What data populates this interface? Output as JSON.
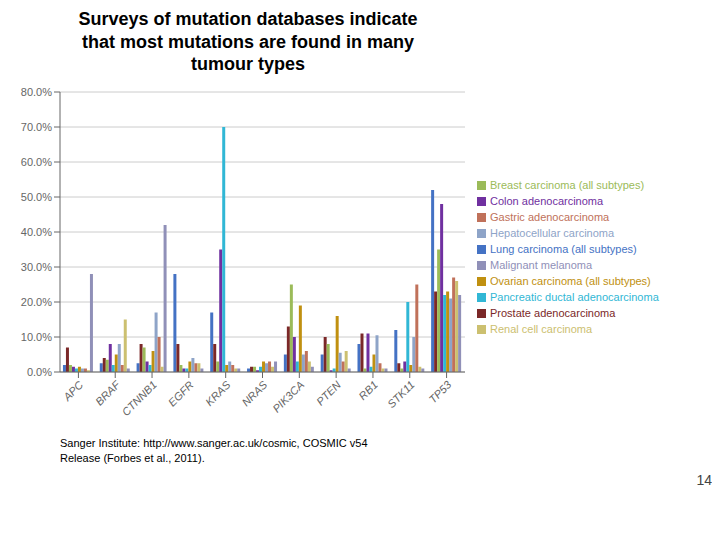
{
  "chart_data": {
    "type": "bar",
    "title": "Surveys of mutation databases indicate\nthat most mutations are found in many\ntumour types",
    "categories": [
      "APC",
      "BRAF",
      "CTNNB1",
      "EGFR",
      "KRAS",
      "NRAS",
      "PIK3CA",
      "PTEN",
      "RB1",
      "STK11",
      "TP53"
    ],
    "series": [
      {
        "name": "Lung carcinoma (all subtypes)",
        "color": "#4472C4",
        "values": [
          2.0,
          2.5,
          2.5,
          28.0,
          17.0,
          1.0,
          5.0,
          5.0,
          8.0,
          12.0,
          52.0
        ]
      },
      {
        "name": "Prostate adenocarcinoma",
        "color": "#7B2828",
        "values": [
          7.0,
          4.0,
          8.0,
          8.0,
          8.0,
          1.5,
          13.0,
          10.0,
          11.0,
          2.5,
          23.0
        ]
      },
      {
        "name": "Breast carcinoma (all subtypes)",
        "color": "#9BBB59",
        "values": [
          2.0,
          3.5,
          7.0,
          2.0,
          3.0,
          1.5,
          25.0,
          8.0,
          1.0,
          1.0,
          35.0
        ]
      },
      {
        "name": "Colon adenocarcinoma",
        "color": "#7030A0",
        "values": [
          1.5,
          8.0,
          3.0,
          1.0,
          35.0,
          0.5,
          10.0,
          0.5,
          11.0,
          3.0,
          48.0
        ]
      },
      {
        "name": "Pancreatic ductal adenocarcinoma",
        "color": "#31B7D5",
        "values": [
          1.0,
          2.0,
          2.0,
          1.0,
          70.0,
          1.5,
          3.0,
          1.0,
          1.5,
          20.0,
          22.0
        ]
      },
      {
        "name": "Ovarian carcinoma (all subtypes)",
        "color": "#C09010",
        "values": [
          1.5,
          5.0,
          6.0,
          3.0,
          2.0,
          3.0,
          19.0,
          16.0,
          5.0,
          2.0,
          23.0
        ]
      },
      {
        "name": "Hepatocellular carcinoma",
        "color": "#8EA4C8",
        "values": [
          1.0,
          8.0,
          17.0,
          4.0,
          3.0,
          2.5,
          5.0,
          5.5,
          10.5,
          10.0,
          21.0
        ]
      },
      {
        "name": "Gastric adenocarcinoma",
        "color": "#C0715A",
        "values": [
          1.0,
          2.0,
          10.0,
          2.5,
          2.0,
          3.0,
          6.0,
          3.0,
          2.5,
          25.0,
          27.0
        ]
      },
      {
        "name": "Renal cell carcinoma",
        "color": "#CCC070",
        "values": [
          0.5,
          15.0,
          1.5,
          2.5,
          1.0,
          1.5,
          3.0,
          6.0,
          1.0,
          1.5,
          26.0
        ]
      },
      {
        "name": "Malignant melanoma",
        "color": "#9090B8",
        "values": [
          28.0,
          1.0,
          42.0,
          1.0,
          1.0,
          3.0,
          1.5,
          1.0,
          1.0,
          1.0,
          22.0
        ]
      }
    ],
    "ylim": [
      0,
      80
    ],
    "yticks": [
      {
        "value": 0,
        "label": "0.0%"
      },
      {
        "value": 10,
        "label": "10.0%"
      },
      {
        "value": 20,
        "label": "20.0%"
      },
      {
        "value": 30,
        "label": "30.0%"
      },
      {
        "value": 40,
        "label": "40.0%"
      },
      {
        "value": 50,
        "label": "50.0%"
      },
      {
        "value": 60,
        "label": "60.0%"
      },
      {
        "value": 70,
        "label": "70.0%"
      },
      {
        "value": 80,
        "label": "80.0%"
      }
    ],
    "grid": true,
    "legend": "right",
    "annotations": [
      "Sanger Institute: http://www.sanger.ac.uk/cosmic, COSMIC v54",
      "Release (Forbes et al., 2011).",
      "14"
    ]
  }
}
